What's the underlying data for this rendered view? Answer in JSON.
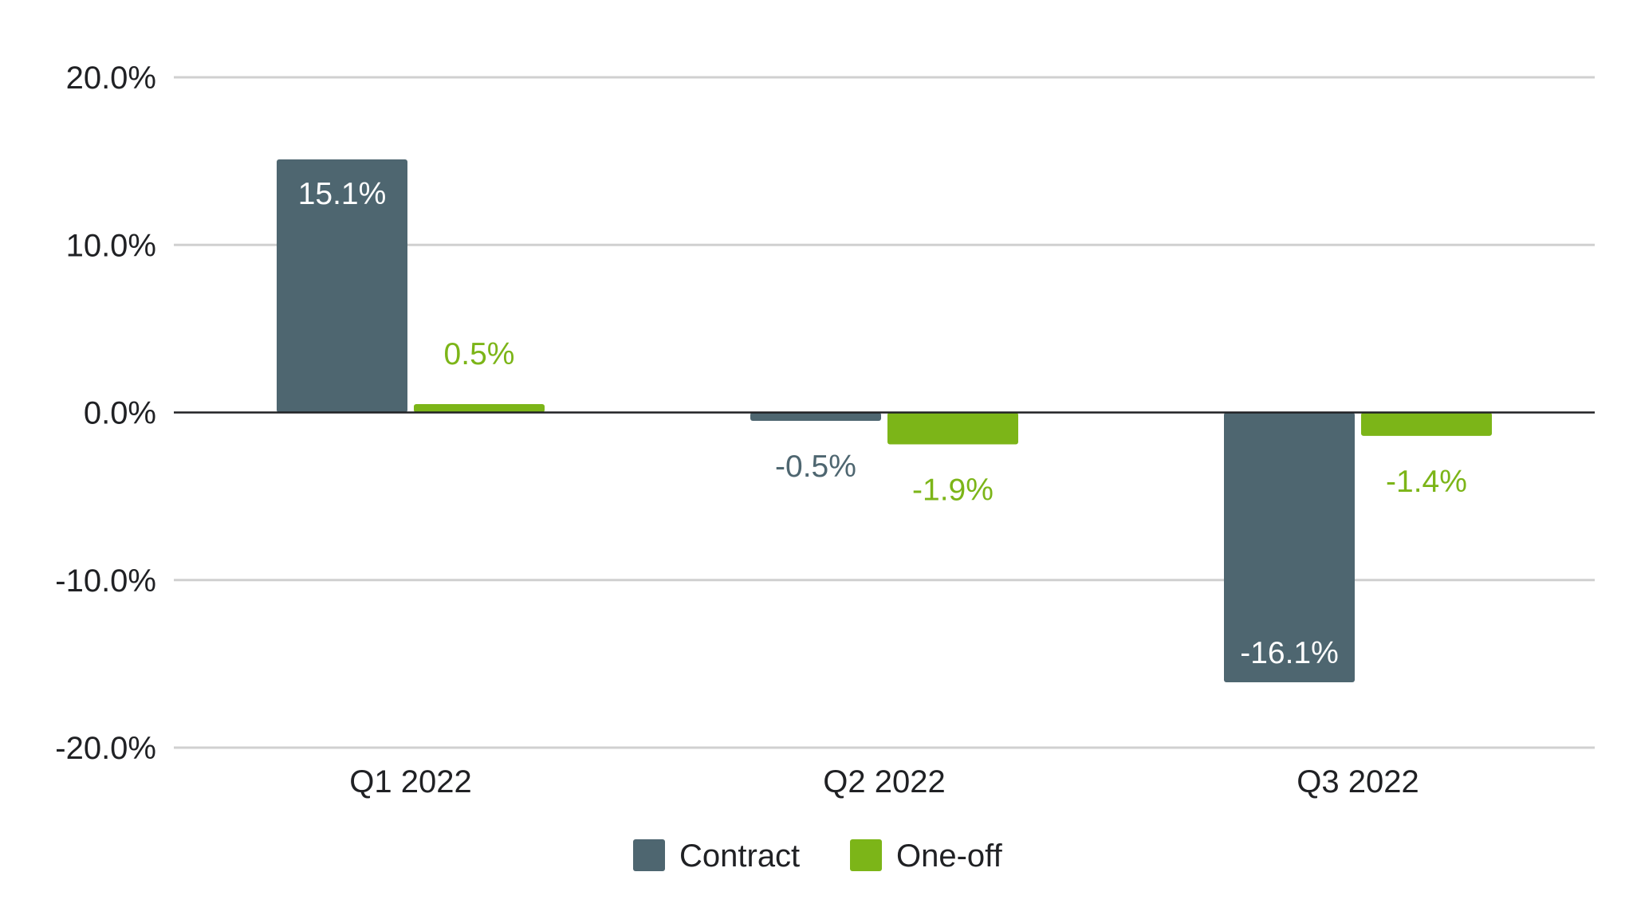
{
  "chart_data": {
    "type": "bar",
    "title": "",
    "xlabel": "",
    "ylabel": "",
    "categories": [
      "Q1 2022",
      "Q2 2022",
      "Q3 2022"
    ],
    "series": [
      {
        "name": "Contract",
        "color": "#4e6670",
        "values": [
          15.1,
          -0.5,
          -16.1
        ],
        "labels": [
          "15.1%",
          "-0.5%",
          "-16.1%"
        ]
      },
      {
        "name": "One-off",
        "color": "#7cb518",
        "values": [
          0.5,
          -1.9,
          -1.4
        ],
        "labels": [
          "0.5%",
          "-1.9%",
          "-1.4%"
        ]
      }
    ],
    "ylim": [
      -20,
      20
    ],
    "yticks": [
      {
        "value": 20,
        "label": "20.0%"
      },
      {
        "value": 10,
        "label": "10.0%"
      },
      {
        "value": 0,
        "label": "0.0%"
      },
      {
        "value": -10,
        "label": "-10.0%"
      },
      {
        "value": -20,
        "label": "-20.0%"
      }
    ],
    "grid": true,
    "legend_position": "bottom"
  }
}
